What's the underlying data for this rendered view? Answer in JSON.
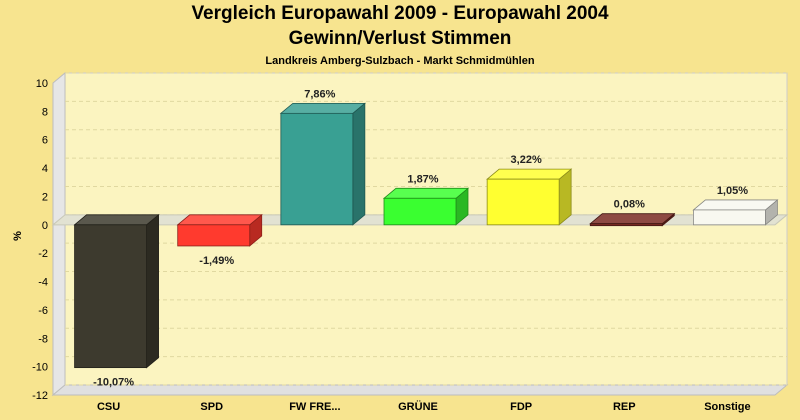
{
  "chart_data": {
    "type": "bar",
    "title": "Vergleich Europawahl 2009 - Europawahl 2004",
    "subtitle": "Gewinn/Verlust Stimmen",
    "caption": "Landkreis Amberg-Sulzbach - Markt Schmidmühlen",
    "ylabel": "%",
    "xlabel": "",
    "ylim": [
      -12,
      10
    ],
    "yticks": [
      10,
      8,
      6,
      4,
      2,
      0,
      -2,
      -4,
      -6,
      -8,
      -10,
      -12
    ],
    "grid": true,
    "categories": [
      "CSU",
      "SPD",
      "FW FRE...",
      "GRÜNE",
      "FDP",
      "REP",
      "Sonstige"
    ],
    "values": [
      -10.07,
      -1.49,
      7.86,
      1.87,
      3.22,
      0.08,
      1.05
    ],
    "value_labels": [
      "-10,07%",
      "-1,49%",
      "7,86%",
      "1,87%",
      "3,22%",
      "0,08%",
      "1,05%"
    ],
    "colors": [
      "#3d3a2e",
      "#ff3a2e",
      "#39a093",
      "#3aff30",
      "#ffff30",
      "#7a2a22",
      "#f8f8f0"
    ]
  }
}
